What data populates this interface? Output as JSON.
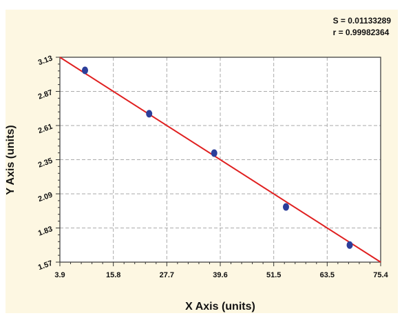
{
  "chart_data": {
    "type": "scatter",
    "title": "",
    "xlabel": "X Axis (units)",
    "ylabel": "Y Axis (units)",
    "xlim": [
      3.9,
      75.4
    ],
    "ylim": [
      1.57,
      3.13
    ],
    "x_ticks": [
      "3.9",
      "15.8",
      "27.7",
      "39.6",
      "51.5",
      "63.5",
      "75.4"
    ],
    "y_ticks": [
      "1.57",
      "1.83",
      "2.09",
      "2.35",
      "2.61",
      "2.87",
      "3.13"
    ],
    "grid": true,
    "stats": [
      "S = 0.01133289",
      "r = 0.99982364"
    ],
    "series": [
      {
        "points": [
          {
            "x": 9.5,
            "y": 3.03
          },
          {
            "x": 23.8,
            "y": 2.7
          },
          {
            "x": 38.3,
            "y": 2.4
          },
          {
            "x": 54.3,
            "y": 1.99
          },
          {
            "x": 68.5,
            "y": 1.7
          }
        ],
        "color": "#2c3e9a"
      }
    ],
    "fit_line": {
      "x": [
        3.9,
        75.4
      ],
      "y": [
        3.13,
        1.57
      ],
      "color": "#e02020"
    },
    "colors": {
      "background": "#fdf7e2",
      "plot_bg": "#ffffff",
      "grid": "#aaaaaa"
    }
  }
}
